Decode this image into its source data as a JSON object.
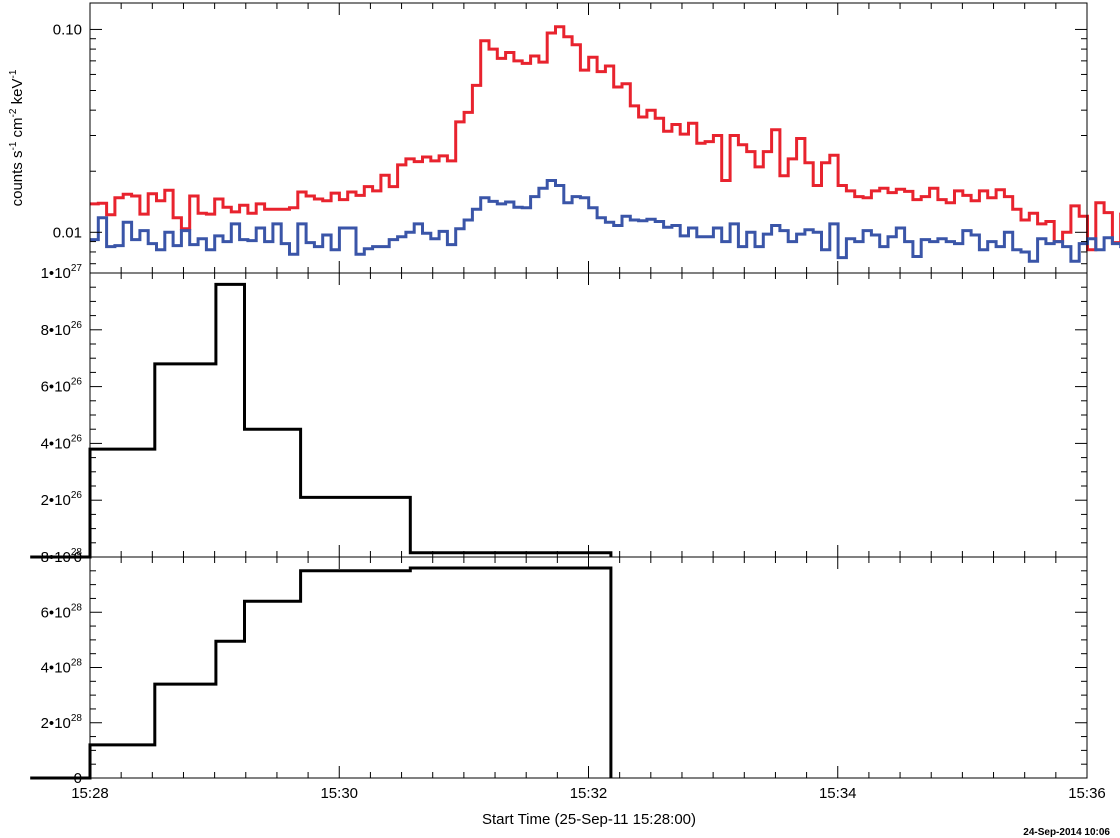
{
  "stamp": "24-Sep-2014 10:06",
  "chart_data": {
    "type": "line",
    "x_axis": {
      "label": "Start Time (25-Sep-11 15:28:00)",
      "range_minutes": [
        0,
        8
      ],
      "tick_minutes": [
        0,
        2,
        4,
        6,
        8
      ],
      "tick_labels": [
        "15:28",
        "15:30",
        "15:32",
        "15:34",
        "15:36"
      ]
    },
    "panels": [
      {
        "id": "lightcurve",
        "scale": "log",
        "ylabel_parts": [
          "counts s",
          "-1",
          " cm",
          "-2",
          " keV",
          "-1"
        ],
        "ylim": [
          0.0063,
          0.135
        ],
        "yticks": [
          {
            "value": 0.1,
            "label": "0.10"
          },
          {
            "value": 0.01,
            "label": "0.01"
          }
        ],
        "series": [
          {
            "color": "#e8232e",
            "step_minutes": 0.0667,
            "values": [
              0.0138,
              0.0139,
              0.0122,
              0.0148,
              0.0154,
              0.0151,
              0.0123,
              0.0155,
              0.0143,
              0.0161,
              0.0118,
              0.0104,
              0.0151,
              0.0124,
              0.0123,
              0.0146,
              0.0133,
              0.0126,
              0.0136,
              0.0124,
              0.0138,
              0.013,
              0.013,
              0.013,
              0.0132,
              0.0158,
              0.0151,
              0.0146,
              0.0143,
              0.0156,
              0.0145,
              0.0158,
              0.0152,
              0.0168,
              0.016,
              0.0191,
              0.0168,
              0.0215,
              0.023,
              0.0223,
              0.0235,
              0.0225,
              0.0238,
              0.0225,
              0.035,
              0.039,
              0.053,
              0.088,
              0.08,
              0.072,
              0.077,
              0.07,
              0.068,
              0.074,
              0.069,
              0.096,
              0.103,
              0.092,
              0.084,
              0.063,
              0.073,
              0.062,
              0.066,
              0.052,
              0.054,
              0.042,
              0.037,
              0.04,
              0.0365,
              0.0315,
              0.034,
              0.0305,
              0.0345,
              0.0275,
              0.028,
              0.03,
              0.018,
              0.03,
              0.027,
              0.025,
              0.021,
              0.025,
              0.032,
              0.019,
              0.023,
              0.029,
              0.022,
              0.017,
              0.022,
              0.024,
              0.017,
              0.016,
              0.015,
              0.0148,
              0.016,
              0.0165,
              0.0157,
              0.0163,
              0.0159,
              0.0145,
              0.015,
              0.0165,
              0.0145,
              0.014,
              0.016,
              0.0152,
              0.0143,
              0.016,
              0.0148,
              0.0162,
              0.015,
              0.013,
              0.0115,
              0.0124,
              0.011,
              0.0113,
              0.009,
              0.01,
              0.0135,
              0.012,
              0.0082,
              0.014,
              0.0125,
              0.0089,
              0.0123,
              0.009,
              0.01,
              0.012,
              0.0113,
              0.011,
              0.014,
              0.0105,
              0.01,
              0.0085,
              0.01
            ]
          },
          {
            "color": "#3a55a8",
            "step_minutes": 0.0667,
            "values": [
              0.0092,
              0.0118,
              0.0085,
              0.0086,
              0.0112,
              0.0092,
              0.0102,
              0.0088,
              0.0082,
              0.01,
              0.0086,
              0.0102,
              0.0087,
              0.0093,
              0.0082,
              0.0096,
              0.009,
              0.011,
              0.0092,
              0.0091,
              0.0105,
              0.009,
              0.011,
              0.0088,
              0.0078,
              0.011,
              0.0089,
              0.0085,
              0.0097,
              0.0082,
              0.0105,
              0.0105,
              0.0078,
              0.0083,
              0.0085,
              0.0085,
              0.0092,
              0.0095,
              0.01,
              0.011,
              0.0099,
              0.0093,
              0.0101,
              0.0087,
              0.0104,
              0.0115,
              0.013,
              0.0148,
              0.0142,
              0.0138,
              0.0141,
              0.0133,
              0.0132,
              0.015,
              0.0165,
              0.018,
              0.017,
              0.014,
              0.015,
              0.0148,
              0.0132,
              0.0118,
              0.0112,
              0.0108,
              0.012,
              0.0115,
              0.0114,
              0.0116,
              0.0113,
              0.0106,
              0.0108,
              0.0096,
              0.0105,
              0.0095,
              0.0095,
              0.0105,
              0.009,
              0.011,
              0.0085,
              0.01,
              0.0085,
              0.0098,
              0.0108,
              0.0102,
              0.009,
              0.0098,
              0.0103,
              0.01,
              0.0082,
              0.011,
              0.0075,
              0.0093,
              0.009,
              0.0102,
              0.0097,
              0.0085,
              0.0095,
              0.0105,
              0.009,
              0.0076,
              0.0092,
              0.009,
              0.0093,
              0.009,
              0.0088,
              0.0102,
              0.0097,
              0.0082,
              0.009,
              0.0085,
              0.01,
              0.0082,
              0.008,
              0.0072,
              0.0093,
              0.0088,
              0.009,
              0.0085,
              0.0072,
              0.0088,
              0.0093,
              0.0082,
              0.0094,
              0.0088,
              0.0085,
              0.0078,
              0.0081,
              0.0085,
              0.01,
              0.011,
              0.0088,
              0.01,
              0.0083,
              0.0085,
              0.009,
              0.0085
            ]
          }
        ]
      },
      {
        "id": "middle",
        "scale": "linear",
        "ylim": [
          0,
          1e+27
        ],
        "yticks": [
          {
            "value": 0,
            "base": "0",
            "exp": ""
          },
          {
            "value": 2e+26,
            "base": "2•10",
            "exp": "26"
          },
          {
            "value": 4e+26,
            "base": "4•10",
            "exp": "26"
          },
          {
            "value": 6e+26,
            "base": "6•10",
            "exp": "26"
          },
          {
            "value": 8e+26,
            "base": "8•10",
            "exp": "26"
          },
          {
            "value": 1e+27,
            "base": "1•10",
            "exp": "27"
          }
        ],
        "series": [
          {
            "color": "#000000",
            "edges_minutes": [
              -0.48,
              0.0,
              0.52,
              1.01,
              1.24,
              1.69,
              2.57,
              4.18
            ],
            "values": [
              0,
              3.8e+26,
              6.8e+26,
              9.6e+26,
              4.5e+26,
              2.1e+26,
              1.5e+25
            ]
          }
        ]
      },
      {
        "id": "bottom",
        "scale": "linear",
        "ylim": [
          0,
          8e+28
        ],
        "yticks": [
          {
            "value": 0,
            "base": "0",
            "exp": ""
          },
          {
            "value": 2e+28,
            "base": "2•10",
            "exp": "28"
          },
          {
            "value": 4e+28,
            "base": "4•10",
            "exp": "28"
          },
          {
            "value": 6e+28,
            "base": "6•10",
            "exp": "28"
          },
          {
            "value": 8e+28,
            "base": "8•10",
            "exp": "28"
          }
        ],
        "series": [
          {
            "color": "#000000",
            "edges_minutes": [
              -0.48,
              0.0,
              0.52,
              1.01,
              1.24,
              1.69,
              2.57,
              4.18
            ],
            "values": [
              0,
              1.2e+28,
              3.4e+28,
              4.95e+28,
              6.4e+28,
              7.5e+28,
              7.6e+28
            ]
          }
        ]
      }
    ]
  }
}
